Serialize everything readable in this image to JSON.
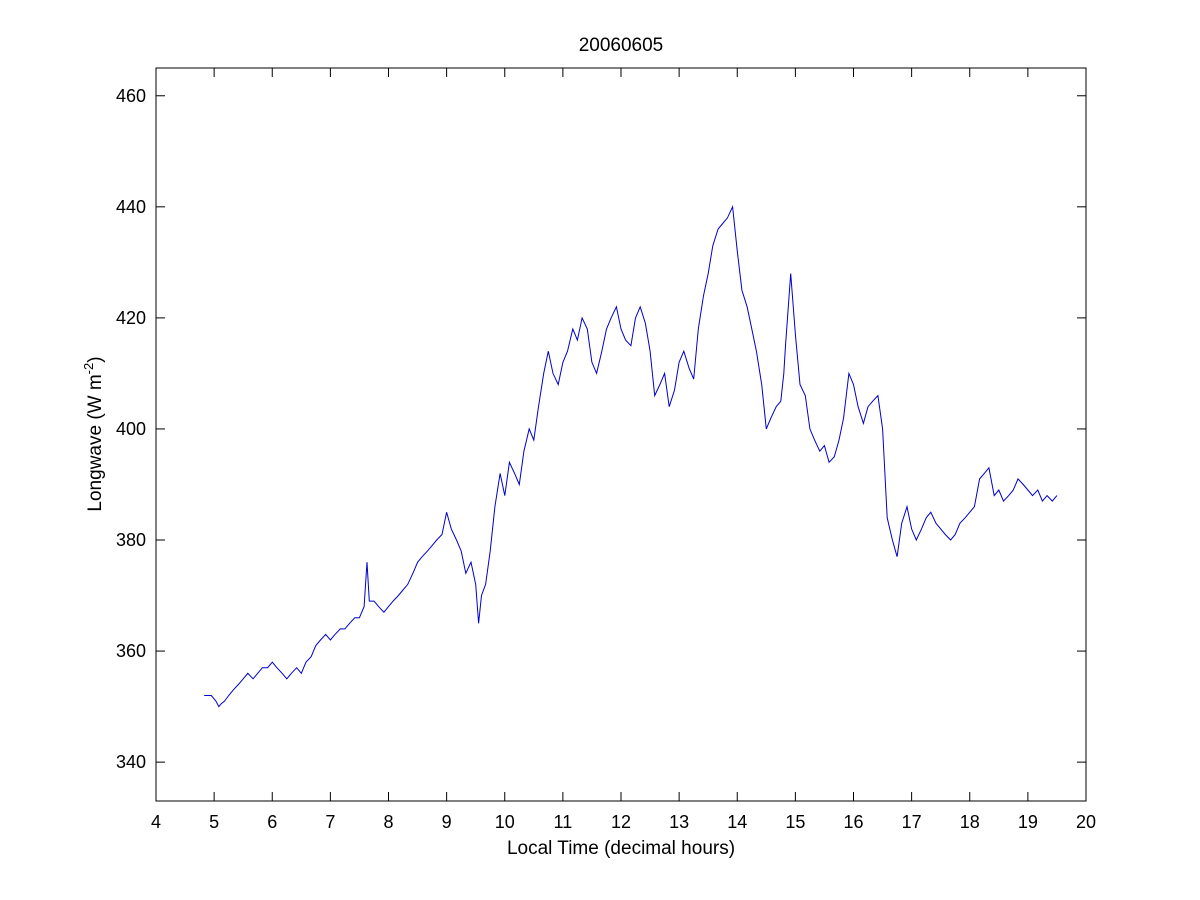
{
  "chart_data": {
    "type": "line",
    "title": "20060605",
    "xlabel": "Local Time (decimal hours)",
    "ylabel_prefix": "Longwave (W m",
    "ylabel_exponent": "-2",
    "ylabel_suffix": ")",
    "xlim": [
      4,
      20
    ],
    "ylim": [
      333,
      465
    ],
    "xticks": [
      4,
      5,
      6,
      7,
      8,
      9,
      10,
      11,
      12,
      13,
      14,
      15,
      16,
      17,
      18,
      19,
      20
    ],
    "yticks": [
      340,
      360,
      380,
      400,
      420,
      440,
      460
    ],
    "grid": false,
    "series": [
      {
        "color": "#0000cc",
        "x": [
          4.83,
          4.95,
          5.03,
          5.08,
          5.12,
          5.18,
          5.25,
          5.33,
          5.42,
          5.5,
          5.58,
          5.67,
          5.75,
          5.83,
          5.92,
          6.0,
          6.08,
          6.17,
          6.25,
          6.33,
          6.42,
          6.5,
          6.58,
          6.67,
          6.75,
          6.83,
          6.92,
          7.0,
          7.08,
          7.17,
          7.25,
          7.33,
          7.42,
          7.5,
          7.58,
          7.63,
          7.67,
          7.75,
          7.83,
          7.92,
          8.0,
          8.08,
          8.17,
          8.25,
          8.33,
          8.42,
          8.5,
          8.58,
          8.67,
          8.75,
          8.83,
          8.92,
          9.0,
          9.08,
          9.17,
          9.25,
          9.33,
          9.42,
          9.5,
          9.55,
          9.6,
          9.67,
          9.75,
          9.83,
          9.92,
          10.0,
          10.08,
          10.17,
          10.25,
          10.33,
          10.42,
          10.5,
          10.58,
          10.67,
          10.75,
          10.83,
          10.92,
          11.0,
          11.08,
          11.17,
          11.25,
          11.33,
          11.42,
          11.5,
          11.58,
          11.67,
          11.75,
          11.83,
          11.92,
          12.0,
          12.08,
          12.17,
          12.25,
          12.33,
          12.42,
          12.5,
          12.58,
          12.67,
          12.75,
          12.83,
          12.92,
          13.0,
          13.08,
          13.17,
          13.25,
          13.33,
          13.42,
          13.5,
          13.58,
          13.67,
          13.75,
          13.83,
          13.92,
          14.0,
          14.08,
          14.17,
          14.25,
          14.33,
          14.42,
          14.5,
          14.58,
          14.67,
          14.75,
          14.8,
          14.83,
          14.92,
          15.0,
          15.08,
          15.17,
          15.25,
          15.33,
          15.42,
          15.5,
          15.58,
          15.67,
          15.75,
          15.83,
          15.92,
          16.0,
          16.08,
          16.17,
          16.25,
          16.33,
          16.42,
          16.5,
          16.58,
          16.67,
          16.75,
          16.83,
          16.92,
          17.0,
          17.08,
          17.17,
          17.25,
          17.33,
          17.42,
          17.5,
          17.58,
          17.67,
          17.75,
          17.83,
          17.92,
          18.0,
          18.08,
          18.17,
          18.25,
          18.33,
          18.42,
          18.5,
          18.58,
          18.67,
          18.75,
          18.83,
          18.92,
          19.0,
          19.08,
          19.17,
          19.25,
          19.33,
          19.42,
          19.5
        ],
        "y": [
          352,
          352,
          351,
          350,
          350.5,
          351,
          352,
          353,
          354,
          355,
          356,
          355,
          356,
          357,
          357,
          358,
          357,
          356,
          355,
          356,
          357,
          356,
          358,
          359,
          361,
          362,
          363,
          362,
          363,
          364,
          364,
          365,
          366,
          366,
          368,
          376,
          369,
          369,
          368,
          367,
          368,
          369,
          370,
          371,
          372,
          374,
          376,
          377,
          378,
          379,
          380,
          381,
          385,
          382,
          380,
          378,
          374,
          376,
          372,
          365,
          370,
          372,
          378,
          386,
          392,
          388,
          394,
          392,
          390,
          396,
          400,
          398,
          404,
          410,
          414,
          410,
          408,
          412,
          414,
          418,
          416,
          420,
          418,
          412,
          410,
          414,
          418,
          420,
          422,
          418,
          416,
          415,
          420,
          422,
          419,
          414,
          406,
          408,
          410,
          404,
          407,
          412,
          414,
          411,
          409,
          418,
          424,
          428,
          433,
          436,
          437,
          438,
          440,
          432,
          425,
          422,
          418,
          414,
          408,
          400,
          402,
          404,
          405,
          410,
          415,
          428,
          417,
          408,
          406,
          400,
          398,
          396,
          397,
          394,
          395,
          398,
          402,
          410,
          408,
          404,
          401,
          404,
          405,
          406,
          400,
          384,
          380,
          377,
          383,
          386,
          382,
          380,
          382,
          384,
          385,
          383,
          382,
          381,
          380,
          381,
          383,
          384,
          385,
          386,
          391,
          392,
          393,
          388,
          389,
          387,
          388,
          389,
          391,
          390,
          389,
          388,
          389,
          387,
          388,
          387,
          388
        ]
      }
    ]
  }
}
